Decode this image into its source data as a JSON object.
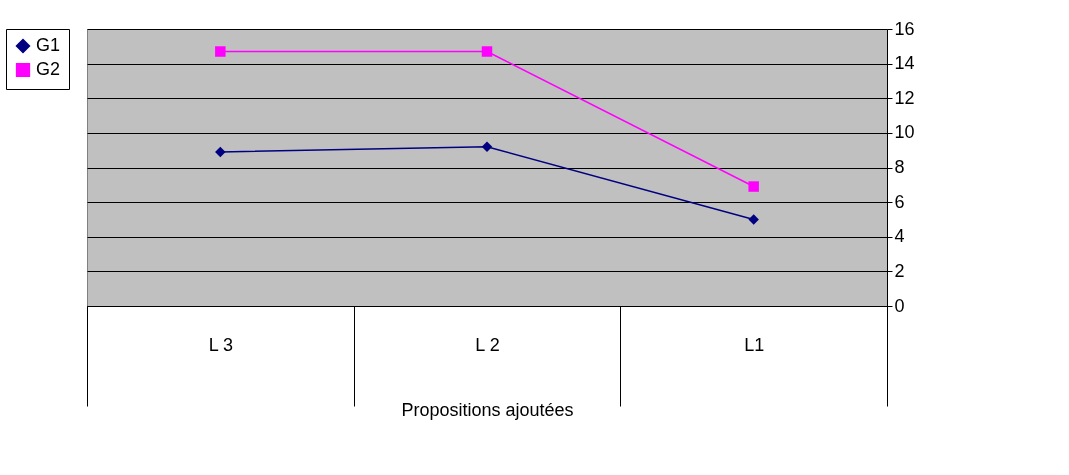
{
  "chart_data": {
    "type": "line",
    "xlabel": "Propositions ajoutées",
    "categories": [
      "L 3",
      "L 2",
      "L1"
    ],
    "series": [
      {
        "name": "G1",
        "color": "#000080",
        "marker": "diamond",
        "values": [
          8.9,
          9.2,
          5.0
        ]
      },
      {
        "name": "G2",
        "color": "#ff00ff",
        "marker": "square",
        "values": [
          14.7,
          14.7,
          6.9
        ]
      }
    ],
    "ylim": [
      0,
      16
    ],
    "yticks": [
      0,
      2,
      4,
      6,
      8,
      10,
      12,
      14,
      16
    ],
    "grid": "y",
    "legend": "left",
    "line_style": "solid"
  }
}
